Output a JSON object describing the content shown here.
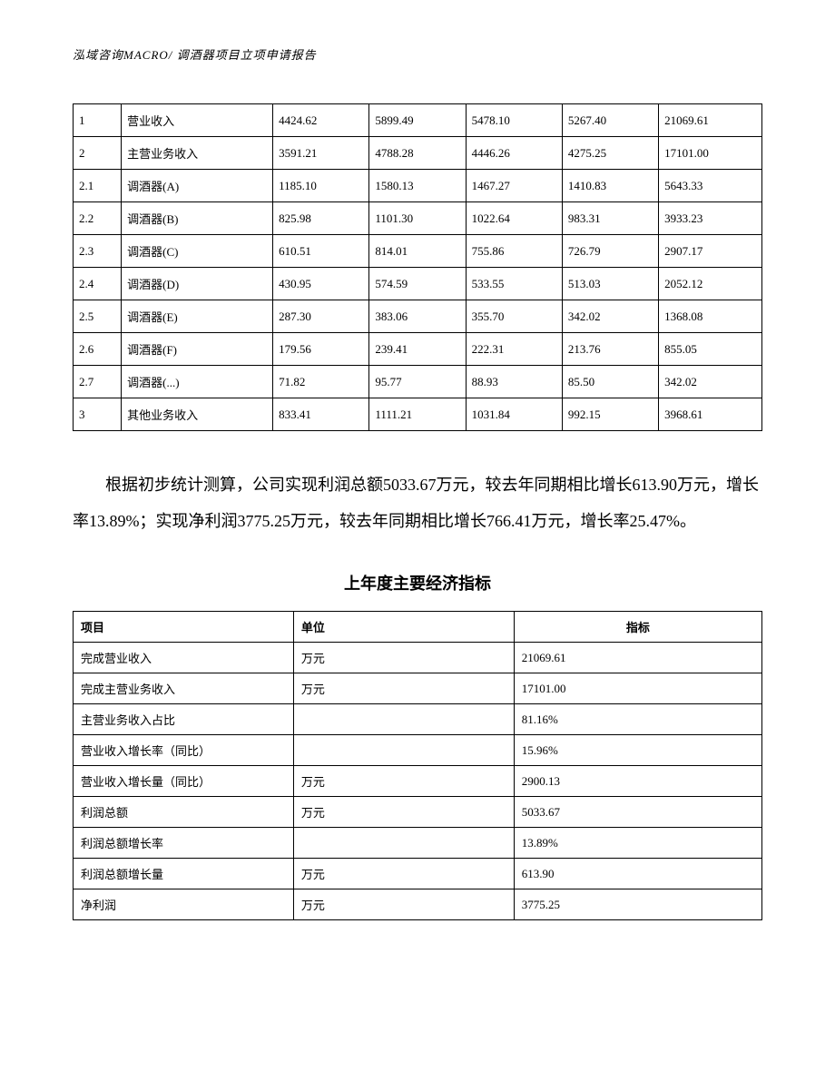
{
  "header": "泓域咨询MACRO/    调酒器项目立项申请报告",
  "table1": {
    "rows": [
      [
        "1",
        "营业收入",
        "4424.62",
        "5899.49",
        "5478.10",
        "5267.40",
        "21069.61"
      ],
      [
        "2",
        "主营业务收入",
        "3591.21",
        "4788.28",
        "4446.26",
        "4275.25",
        "17101.00"
      ],
      [
        "2.1",
        "调酒器(A)",
        "1185.10",
        "1580.13",
        "1467.27",
        "1410.83",
        "5643.33"
      ],
      [
        "2.2",
        "调酒器(B)",
        "825.98",
        "1101.30",
        "1022.64",
        "983.31",
        "3933.23"
      ],
      [
        "2.3",
        "调酒器(C)",
        "610.51",
        "814.01",
        "755.86",
        "726.79",
        "2907.17"
      ],
      [
        "2.4",
        "调酒器(D)",
        "430.95",
        "574.59",
        "533.55",
        "513.03",
        "2052.12"
      ],
      [
        "2.5",
        "调酒器(E)",
        "287.30",
        "383.06",
        "355.70",
        "342.02",
        "1368.08"
      ],
      [
        "2.6",
        "调酒器(F)",
        "179.56",
        "239.41",
        "222.31",
        "213.76",
        "855.05"
      ],
      [
        "2.7",
        "调酒器(...)",
        "71.82",
        "95.77",
        "88.93",
        "85.50",
        "342.02"
      ],
      [
        "3",
        "其他业务收入",
        "833.41",
        "1111.21",
        "1031.84",
        "992.15",
        "3968.61"
      ]
    ],
    "col_widths": [
      "7%",
      "22%",
      "14%",
      "14%",
      "14%",
      "14%",
      "15%"
    ]
  },
  "paragraph": "根据初步统计测算，公司实现利润总额5033.67万元，较去年同期相比增长613.90万元，增长率13.89%；实现净利润3775.25万元，较去年同期相比增长766.41万元，增长率25.47%。",
  "section_title": "上年度主要经济指标",
  "table2": {
    "headers": [
      "项目",
      "单位",
      "指标"
    ],
    "rows": [
      [
        "完成营业收入",
        "万元",
        "21069.61"
      ],
      [
        "完成主营业务收入",
        "万元",
        "17101.00"
      ],
      [
        "主营业务收入占比",
        "",
        "81.16%"
      ],
      [
        "营业收入增长率（同比）",
        "",
        "15.96%"
      ],
      [
        "营业收入增长量（同比）",
        "万元",
        "2900.13"
      ],
      [
        "利润总额",
        "万元",
        "5033.67"
      ],
      [
        "利润总额增长率",
        "",
        "13.89%"
      ],
      [
        "利润总额增长量",
        "万元",
        "613.90"
      ],
      [
        "净利润",
        "万元",
        "3775.25"
      ]
    ],
    "col_widths": [
      "32%",
      "32%",
      "36%"
    ]
  },
  "colors": {
    "background": "#ffffff",
    "text": "#000000",
    "border": "#000000"
  },
  "fonts": {
    "body_size": 13,
    "paragraph_size": 18,
    "title_size": 18
  }
}
